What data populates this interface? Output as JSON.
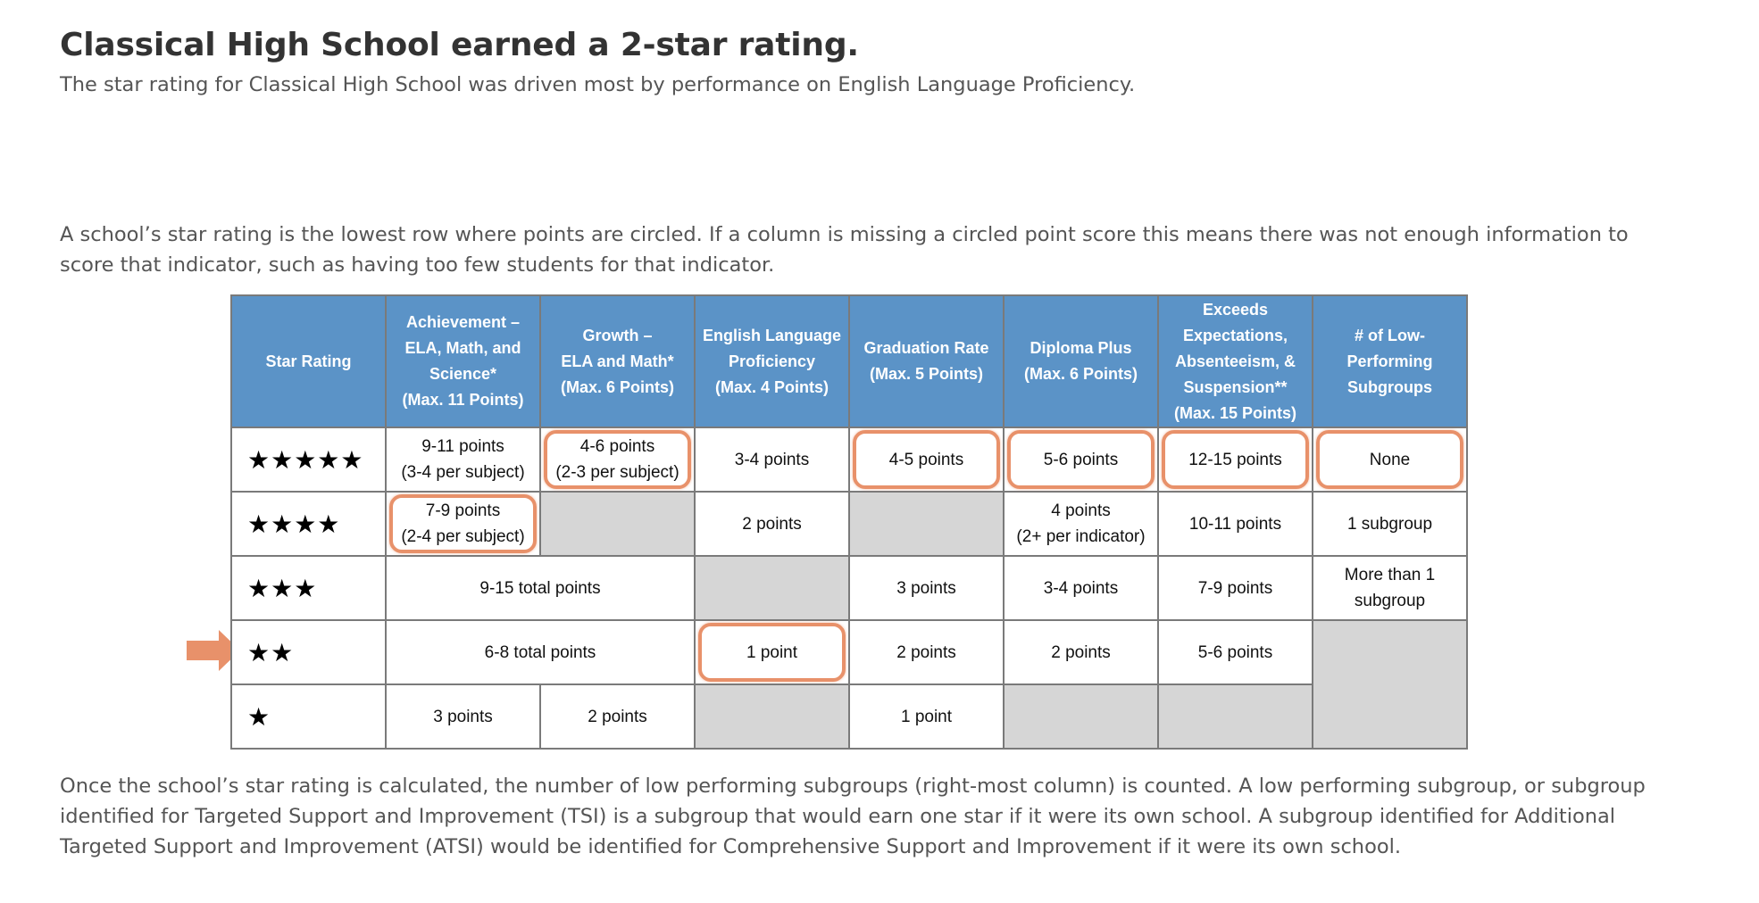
{
  "header": {
    "title": "Classical High School earned a 2-star rating.",
    "subtitle": "The star rating for Classical High School was driven most by performance on English Language Proficiency."
  },
  "intro": "A school’s star rating is the lowest row where points are circled. If a column is missing a circled point score this means there was not enough information to score that indicator, such as having too few students for that indicator.",
  "table": {
    "columns": {
      "star_rating": "Star Rating",
      "achievement": [
        "Achievement –",
        "ELA, Math, and",
        "Science*",
        "(Max. 11 Points)"
      ],
      "growth": [
        "Growth –",
        "ELA and Math*",
        "(Max. 6 Points)"
      ],
      "elp": [
        "English Language",
        "Proficiency",
        "(Max. 4 Points)"
      ],
      "graduation": [
        "Graduation Rate",
        "(Max. 5 Points)"
      ],
      "diploma": [
        "Diploma Plus",
        "(Max. 6 Points)"
      ],
      "exceeds": [
        "Exceeds",
        "Expectations,",
        "Absenteeism, &",
        "Suspension**",
        "(Max. 15 Points)"
      ],
      "subgroups": [
        "# of Low-",
        "Performing",
        "Subgroups"
      ]
    },
    "rows": {
      "five": {
        "stars": "★★★★★",
        "achievement": [
          "9-11 points",
          "(3-4 per subject)"
        ],
        "growth": [
          "4-6 points",
          "(2-3 per subject)"
        ],
        "elp": "3-4 points",
        "graduation": "4-5 points",
        "diploma": "5-6 points",
        "exceeds": "12-15 points",
        "subgroups": "None"
      },
      "four": {
        "stars": "★★★★",
        "achievement": [
          "7-9 points",
          "(2-4 per subject)"
        ],
        "elp": "2 points",
        "diploma": [
          "4 points",
          "(2+ per indicator)"
        ],
        "exceeds": "10-11 points",
        "subgroups": "1 subgroup"
      },
      "three": {
        "stars": "★★★",
        "combined": "9-15 total points",
        "graduation": "3 points",
        "diploma": "3-4 points",
        "exceeds": "7-9 points",
        "subgroups": [
          "More than 1",
          "subgroup"
        ]
      },
      "two": {
        "stars": "★★",
        "combined": "6-8 total points",
        "elp": "1 point",
        "graduation": "2 points",
        "diploma": "2 points",
        "exceeds": "5-6 points"
      },
      "one": {
        "stars": "★",
        "achievement": "3 points",
        "growth": "2 points",
        "graduation": "1 point"
      }
    }
  },
  "footer": "Once the school’s star rating is calculated, the number of low performing subgroups (right-most column) is counted. A low performing subgroup, or subgroup identified for Targeted Support and Improvement (TSI) is a subgroup that would earn one star if it were its own school. A subgroup identified for Additional Targeted Support and Improvement (ATSI) would be identified for Comprehensive Support and Improvement if it were its own school.",
  "colors": {
    "header_blue": "#5b93c7",
    "highlight_orange": "#e8916a",
    "arrow_orange": "#e8916a"
  },
  "icons": {
    "row_marker": "arrow-right-icon"
  }
}
